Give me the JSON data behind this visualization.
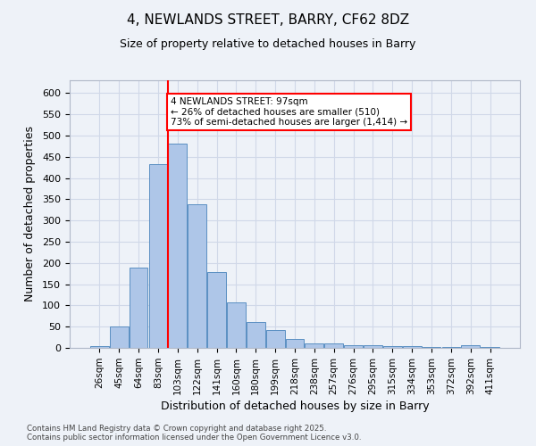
{
  "title1": "4, NEWLANDS STREET, BARRY, CF62 8DZ",
  "title2": "Size of property relative to detached houses in Barry",
  "xlabel": "Distribution of detached houses by size in Barry",
  "ylabel": "Number of detached properties",
  "categories": [
    "26sqm",
    "45sqm",
    "64sqm",
    "83sqm",
    "103sqm",
    "122sqm",
    "141sqm",
    "160sqm",
    "180sqm",
    "199sqm",
    "218sqm",
    "238sqm",
    "257sqm",
    "276sqm",
    "295sqm",
    "315sqm",
    "334sqm",
    "353sqm",
    "372sqm",
    "392sqm",
    "411sqm"
  ],
  "values": [
    5,
    50,
    190,
    433,
    480,
    338,
    178,
    108,
    60,
    43,
    22,
    10,
    10,
    7,
    7,
    4,
    4,
    3,
    2,
    6,
    3
  ],
  "bar_color": "#aec6e8",
  "bar_edge_color": "#5a8fc2",
  "grid_color": "#d0d8e8",
  "vline_x": 4,
  "vline_color": "red",
  "annotation_text": "4 NEWLANDS STREET: 97sqm\n← 26% of detached houses are smaller (510)\n73% of semi-detached houses are larger (1,414) →",
  "annotation_box_color": "white",
  "annotation_box_edge_color": "red",
  "ylim": [
    0,
    630
  ],
  "yticks": [
    0,
    50,
    100,
    150,
    200,
    250,
    300,
    350,
    400,
    450,
    500,
    550,
    600
  ],
  "footnote": "Contains HM Land Registry data © Crown copyright and database right 2025.\nContains public sector information licensed under the Open Government Licence v3.0.",
  "background_color": "#eef2f8",
  "fig_width": 6.0,
  "fig_height": 5.0,
  "dpi": 100
}
